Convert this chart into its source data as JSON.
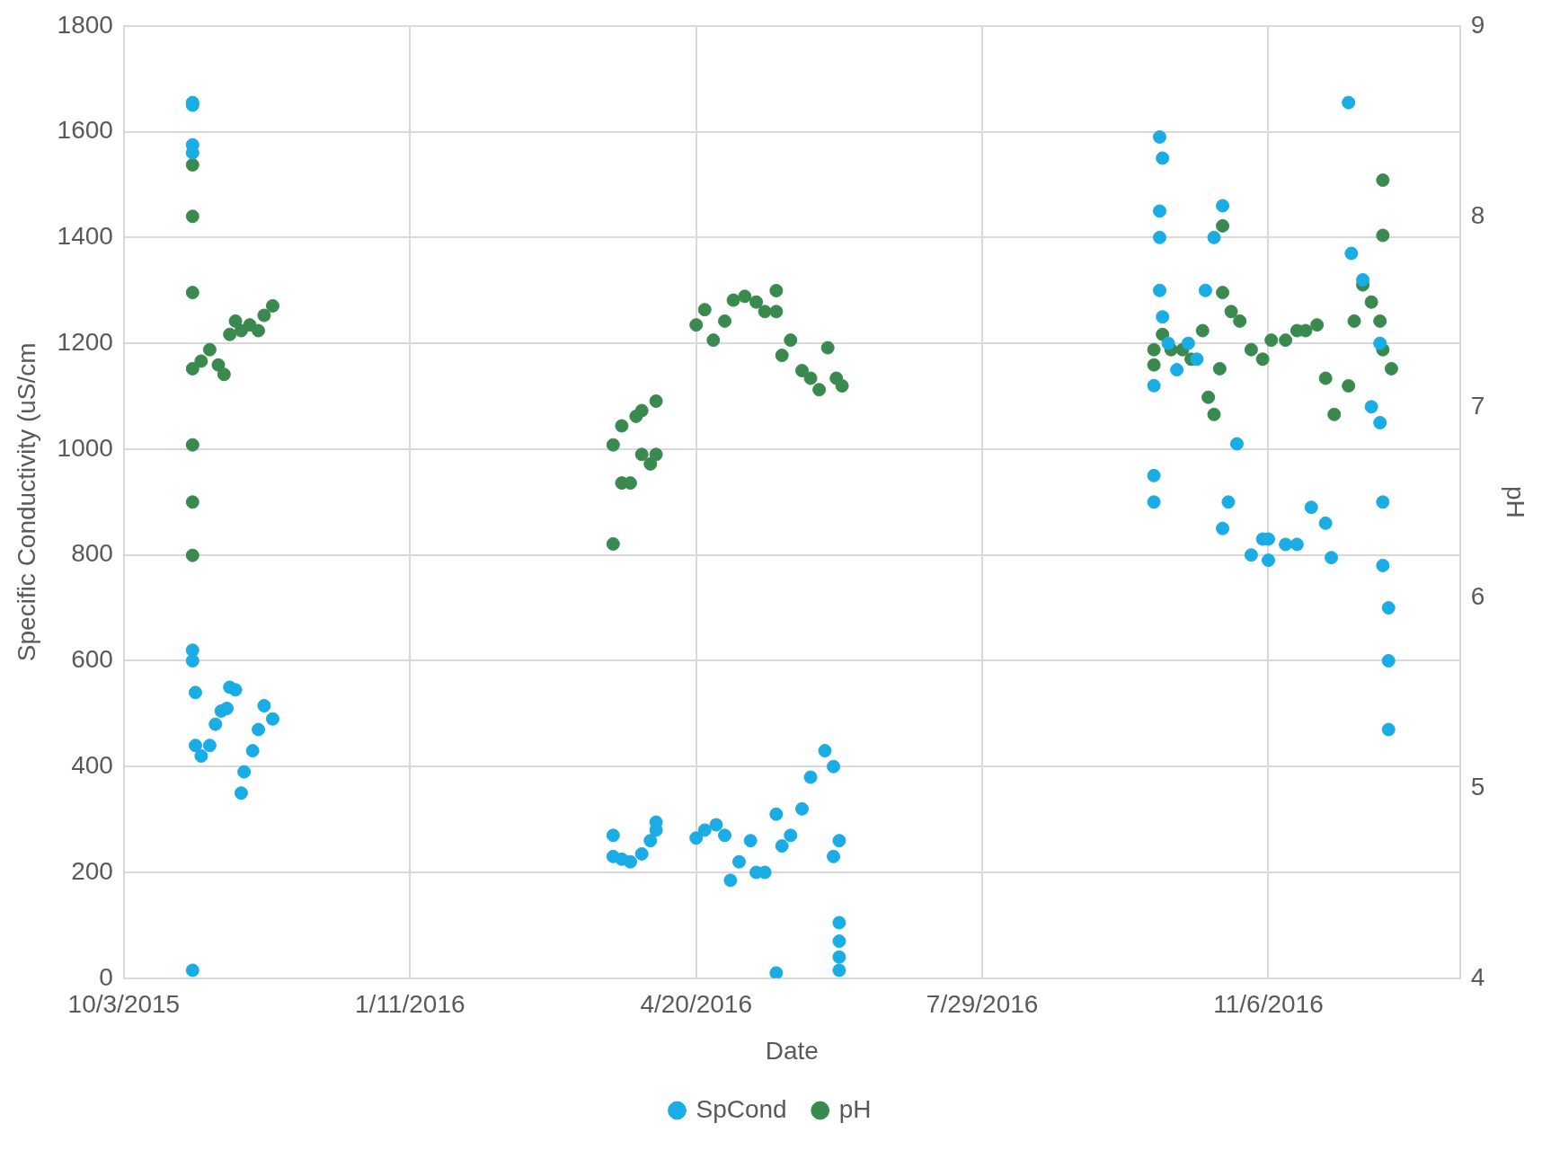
{
  "chart_data": {
    "type": "scatter",
    "xlabel": "Date",
    "ylabel": "Specific Conductivity (uS/cm",
    "y2label": "pH",
    "xlim": [
      "2015-10-03",
      "2017-01-12"
    ],
    "xticks": [
      {
        "value": "2015-10-03",
        "label": "10/3/2015"
      },
      {
        "value": "2016-01-11",
        "label": "1/11/2016"
      },
      {
        "value": "2016-04-20",
        "label": "4/20/2016"
      },
      {
        "value": "2016-07-29",
        "label": "7/29/2016"
      },
      {
        "value": "2016-11-06",
        "label": "11/6/2016"
      }
    ],
    "ylim": [
      0,
      1800
    ],
    "yticks": [
      0,
      200,
      400,
      600,
      800,
      1000,
      1200,
      1400,
      1600,
      1800
    ],
    "y2lim": [
      4,
      9
    ],
    "y2ticks": [
      4,
      5,
      6,
      7,
      8,
      9
    ],
    "grid": true,
    "legend": "bottom",
    "marker": "circle",
    "series": [
      {
        "name": "SpCond",
        "color": "#1aace4",
        "x": [
          "2015-10-27",
          "2015-10-27",
          "2015-10-27",
          "2015-10-27",
          "2015-10-27",
          "2015-10-27",
          "2015-10-27",
          "2015-10-28",
          "2015-10-28",
          "2015-10-30",
          "2015-11-02",
          "2015-11-04",
          "2015-11-06",
          "2015-11-08",
          "2015-11-09",
          "2015-11-11",
          "2015-11-13",
          "2015-11-14",
          "2015-11-17",
          "2015-11-19",
          "2015-11-21",
          "2015-11-24",
          "2016-03-22",
          "2016-03-22",
          "2016-03-25",
          "2016-03-28",
          "2016-04-01",
          "2016-04-04",
          "2016-04-06",
          "2016-04-06",
          "2016-04-20",
          "2016-04-23",
          "2016-04-27",
          "2016-04-30",
          "2016-05-02",
          "2016-05-05",
          "2016-05-09",
          "2016-05-11",
          "2016-05-14",
          "2016-05-18",
          "2016-05-18",
          "2016-05-20",
          "2016-05-23",
          "2016-05-27",
          "2016-05-30",
          "2016-06-04",
          "2016-06-07",
          "2016-06-07",
          "2016-06-09",
          "2016-06-09",
          "2016-06-09",
          "2016-06-09",
          "2016-06-09",
          "2016-09-27",
          "2016-09-27",
          "2016-09-27",
          "2016-09-29",
          "2016-09-29",
          "2016-09-29",
          "2016-09-29",
          "2016-09-30",
          "2016-09-30",
          "2016-10-02",
          "2016-10-05",
          "2016-10-09",
          "2016-10-12",
          "2016-10-15",
          "2016-10-18",
          "2016-10-21",
          "2016-10-21",
          "2016-10-23",
          "2016-10-26",
          "2016-10-31",
          "2016-11-04",
          "2016-11-06",
          "2016-11-06",
          "2016-11-12",
          "2016-11-16",
          "2016-11-21",
          "2016-11-26",
          "2016-11-28",
          "2016-12-04",
          "2016-12-05",
          "2016-12-09",
          "2016-12-12",
          "2016-12-15",
          "2016-12-15",
          "2016-12-16",
          "2016-12-16",
          "2016-12-18",
          "2016-12-18",
          "2016-12-18"
        ],
        "values": [
          1655,
          1650,
          1575,
          1560,
          620,
          600,
          15,
          540,
          440,
          420,
          440,
          480,
          505,
          510,
          550,
          545,
          350,
          390,
          430,
          470,
          515,
          490,
          270,
          230,
          225,
          220,
          235,
          260,
          295,
          280,
          265,
          280,
          290,
          270,
          185,
          220,
          260,
          200,
          200,
          10,
          310,
          250,
          270,
          320,
          380,
          430,
          400,
          230,
          260,
          105,
          70,
          40,
          15,
          950,
          900,
          1120,
          1300,
          1400,
          1590,
          1450,
          1550,
          1250,
          1200,
          1150,
          1200,
          1170,
          1300,
          1400,
          1460,
          850,
          900,
          1010,
          800,
          830,
          790,
          830,
          820,
          820,
          890,
          860,
          795,
          1655,
          1370,
          1320,
          1080,
          1050,
          1200,
          900,
          780,
          470,
          600,
          700
        ]
      },
      {
        "name": "pH",
        "color": "#3a8a50",
        "axis": "y2",
        "x": [
          "2015-10-27",
          "2015-10-27",
          "2015-10-27",
          "2015-10-27",
          "2015-10-27",
          "2015-10-27",
          "2015-10-27",
          "2015-10-30",
          "2015-11-02",
          "2015-11-05",
          "2015-11-07",
          "2015-11-09",
          "2015-11-11",
          "2015-11-13",
          "2015-11-16",
          "2015-11-19",
          "2015-11-21",
          "2015-11-24",
          "2016-03-22",
          "2016-03-22",
          "2016-03-25",
          "2016-03-25",
          "2016-03-28",
          "2016-03-30",
          "2016-04-01",
          "2016-04-01",
          "2016-04-04",
          "2016-04-06",
          "2016-04-06",
          "2016-04-20",
          "2016-04-23",
          "2016-04-26",
          "2016-04-30",
          "2016-05-03",
          "2016-05-07",
          "2016-05-11",
          "2016-05-14",
          "2016-05-18",
          "2016-05-18",
          "2016-05-20",
          "2016-05-23",
          "2016-05-27",
          "2016-05-30",
          "2016-06-02",
          "2016-06-05",
          "2016-06-08",
          "2016-06-10",
          "2016-09-27",
          "2016-09-27",
          "2016-09-30",
          "2016-10-03",
          "2016-10-07",
          "2016-10-10",
          "2016-10-14",
          "2016-10-16",
          "2016-10-18",
          "2016-10-20",
          "2016-10-21",
          "2016-10-21",
          "2016-10-24",
          "2016-10-27",
          "2016-10-31",
          "2016-11-04",
          "2016-11-07",
          "2016-11-12",
          "2016-11-16",
          "2016-11-19",
          "2016-11-23",
          "2016-11-26",
          "2016-11-29",
          "2016-12-04",
          "2016-12-06",
          "2016-12-09",
          "2016-12-12",
          "2016-12-15",
          "2016-12-16",
          "2016-12-16",
          "2016-12-16",
          "2016-12-19"
        ],
        "values": [
          8.27,
          8.0,
          7.6,
          7.2,
          6.8,
          6.5,
          6.22,
          7.24,
          7.3,
          7.22,
          7.17,
          7.38,
          7.45,
          7.4,
          7.43,
          7.4,
          7.48,
          7.53,
          6.28,
          6.8,
          6.9,
          6.6,
          6.6,
          6.95,
          6.75,
          6.98,
          6.7,
          7.03,
          6.75,
          7.43,
          7.51,
          7.35,
          7.45,
          7.56,
          7.58,
          7.55,
          7.5,
          7.61,
          7.5,
          7.27,
          7.35,
          7.19,
          7.15,
          7.09,
          7.31,
          7.15,
          7.11,
          7.22,
          7.3,
          7.38,
          7.3,
          7.3,
          7.25,
          7.4,
          7.05,
          6.96,
          7.2,
          7.95,
          7.6,
          7.5,
          7.45,
          7.3,
          7.25,
          7.35,
          7.35,
          7.4,
          7.4,
          7.43,
          7.15,
          6.96,
          7.11,
          7.45,
          7.64,
          7.55,
          7.45,
          8.19,
          7.9,
          7.3,
          7.2
        ]
      }
    ]
  }
}
